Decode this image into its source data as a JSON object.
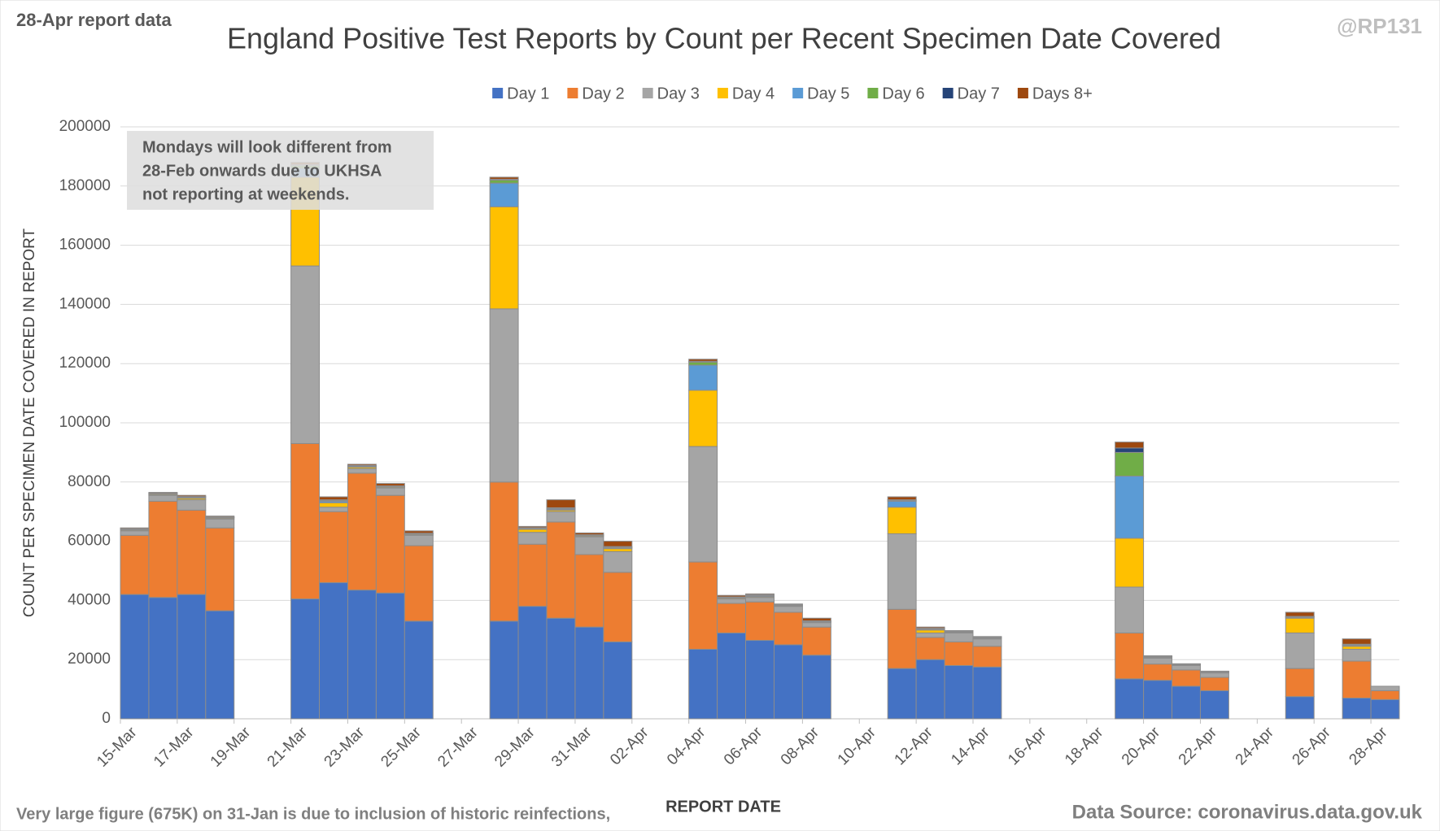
{
  "chart_data": {
    "type": "stacked_bar",
    "title": "England Positive Test Reports by Count per Recent Specimen Date Covered",
    "subtitle": "28-Apr report data",
    "credit": "@RP131",
    "annotation": [
      "Mondays will look different from",
      "28-Feb onwards due to UKHSA",
      "not reporting at weekends."
    ],
    "footnote": "Very large figure (675K) on 31-Jan is due to inclusion of historic reinfections,",
    "source": "Data Source: coronavirus.data.gov.uk",
    "x_label": "REPORT DATE",
    "y_label": "COUNT PER SPECIMEN DATE COVERED IN REPORT",
    "categories": [
      "15-Mar",
      null,
      "17-Mar",
      null,
      "19-Mar",
      null,
      "21-Mar",
      null,
      "23-Mar",
      null,
      "25-Mar",
      null,
      "27-Mar",
      null,
      "29-Mar",
      null,
      "31-Mar",
      null,
      "02-Apr",
      null,
      "04-Apr",
      null,
      "06-Apr",
      null,
      "08-Apr",
      null,
      "10-Apr",
      null,
      "12-Apr",
      null,
      "14-Apr",
      null,
      "16-Apr",
      null,
      "18-Apr",
      null,
      "20-Apr",
      null,
      "22-Apr",
      null,
      "24-Apr",
      null,
      "26-Apr",
      null,
      "28-Apr"
    ],
    "series": [
      {
        "name": "Day 1",
        "color": "#4472c4",
        "values": [
          42000,
          41000,
          42000,
          36500,
          null,
          null,
          40500,
          46000,
          43500,
          42500,
          33000,
          null,
          null,
          33000,
          38000,
          34000,
          31000,
          26000,
          null,
          null,
          23500,
          29000,
          26500,
          25000,
          21500,
          null,
          null,
          17000,
          20000,
          18000,
          17500,
          null,
          null,
          null,
          null,
          13500,
          13000,
          11000,
          9500,
          null,
          null,
          7500,
          null,
          7000,
          6500
        ]
      },
      {
        "name": "Day 2",
        "color": "#ed7d31",
        "values": [
          20000,
          32500,
          28500,
          28000,
          null,
          null,
          52500,
          24000,
          39500,
          33000,
          25500,
          null,
          null,
          47000,
          21000,
          32500,
          24500,
          23500,
          null,
          null,
          29500,
          10000,
          13000,
          11000,
          9500,
          null,
          null,
          20000,
          7500,
          8000,
          7000,
          null,
          null,
          null,
          null,
          15500,
          5500,
          5500,
          4500,
          null,
          null,
          9500,
          null,
          12500,
          3000
        ]
      },
      {
        "name": "Day 3",
        "color": "#a5a5a5",
        "values": [
          1500,
          2000,
          3500,
          3000,
          null,
          null,
          60000,
          1500,
          1500,
          2500,
          3500,
          null,
          null,
          58500,
          4000,
          3500,
          6000,
          7000,
          null,
          null,
          39000,
          1500,
          1500,
          2000,
          1500,
          null,
          null,
          25500,
          1500,
          3000,
          2500,
          null,
          null,
          null,
          null,
          15500,
          2000,
          1500,
          1500,
          null,
          null,
          12000,
          null,
          4000,
          1500
        ]
      },
      {
        "name": "Day 4",
        "color": "#ffc000",
        "values": [
          300,
          300,
          500,
          300,
          null,
          null,
          30000,
          1500,
          500,
          300,
          300,
          null,
          null,
          34500,
          1000,
          500,
          300,
          1000,
          null,
          null,
          19000,
          300,
          300,
          200,
          200,
          null,
          null,
          9000,
          1000,
          200,
          200,
          null,
          null,
          null,
          null,
          16500,
          200,
          200,
          200,
          null,
          null,
          5000,
          null,
          1000,
          0
        ]
      },
      {
        "name": "Day 5",
        "color": "#5b9bd5",
        "values": [
          200,
          200,
          300,
          200,
          null,
          null,
          3000,
          500,
          300,
          200,
          200,
          null,
          null,
          8000,
          300,
          300,
          200,
          300,
          null,
          null,
          8500,
          200,
          300,
          200,
          200,
          null,
          null,
          2000,
          300,
          200,
          200,
          null,
          null,
          null,
          null,
          21000,
          200,
          100,
          100,
          null,
          null,
          300,
          null,
          300,
          0
        ]
      },
      {
        "name": "Day 6",
        "color": "#70ad47",
        "values": [
          100,
          100,
          200,
          100,
          null,
          null,
          1000,
          300,
          200,
          100,
          100,
          null,
          null,
          1000,
          200,
          200,
          100,
          200,
          null,
          null,
          1000,
          100,
          200,
          100,
          100,
          null,
          null,
          300,
          200,
          100,
          100,
          null,
          null,
          null,
          null,
          8000,
          100,
          100,
          100,
          null,
          null,
          200,
          null,
          200,
          0
        ]
      },
      {
        "name": "Day 7",
        "color": "#264478",
        "values": [
          100,
          100,
          100,
          100,
          null,
          null,
          200,
          200,
          100,
          100,
          100,
          null,
          null,
          300,
          100,
          300,
          100,
          200,
          null,
          null,
          300,
          100,
          100,
          100,
          100,
          null,
          null,
          200,
          100,
          100,
          100,
          null,
          null,
          null,
          null,
          1500,
          100,
          100,
          100,
          null,
          null,
          100,
          null,
          200,
          0
        ]
      },
      {
        "name": "Days 8+",
        "color": "#9e480e",
        "values": [
          300,
          300,
          400,
          300,
          null,
          null,
          800,
          1000,
          400,
          800,
          800,
          null,
          null,
          700,
          400,
          2700,
          600,
          1800,
          null,
          null,
          700,
          500,
          300,
          200,
          900,
          null,
          null,
          1000,
          400,
          200,
          200,
          null,
          null,
          null,
          null,
          2000,
          200,
          100,
          100,
          null,
          null,
          1400,
          null,
          1800,
          0
        ]
      }
    ],
    "ylim": [
      0,
      200000
    ],
    "yticks": [
      0,
      20000,
      40000,
      60000,
      80000,
      100000,
      120000,
      140000,
      160000,
      180000,
      200000
    ],
    "grid": true,
    "legend": "top"
  }
}
